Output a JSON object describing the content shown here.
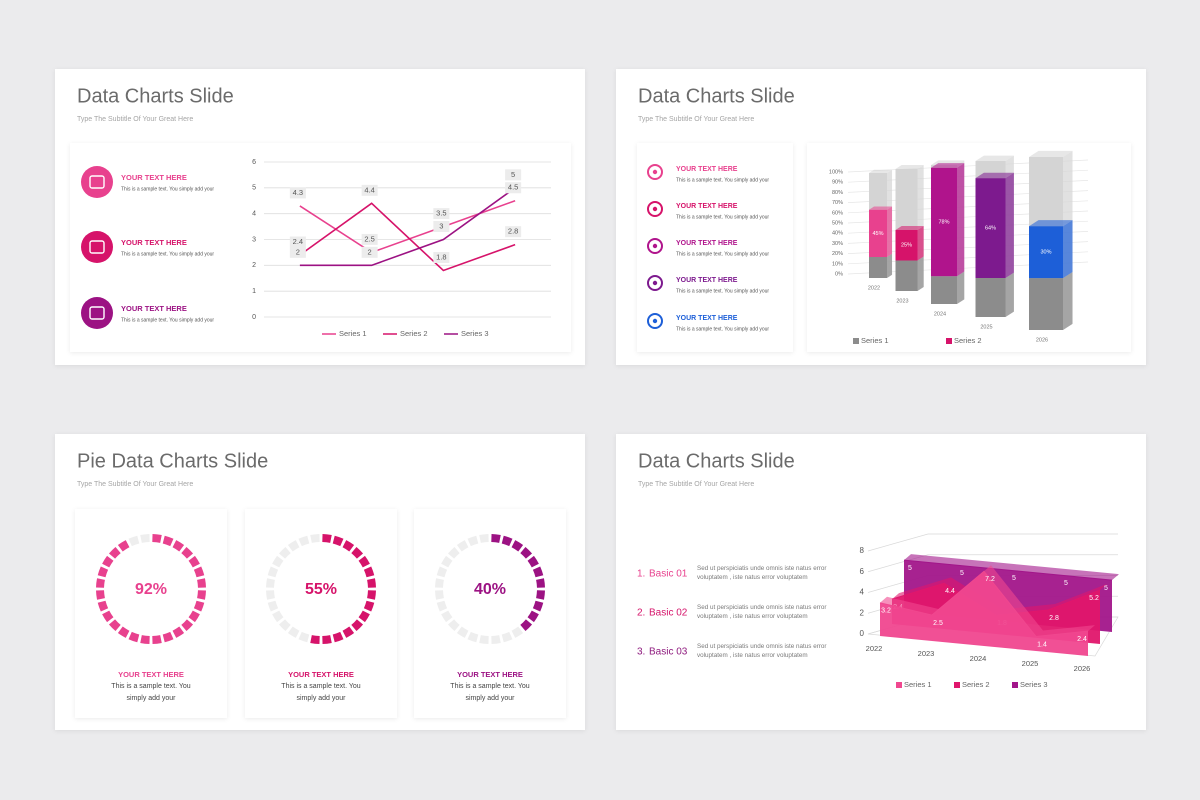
{
  "slides": [
    {
      "title": "Data Charts Slide",
      "subtitle": "Type The Subtitle Of Your Great Here",
      "items": [
        {
          "heading": "YOUR TEXT HERE",
          "text": "This is a sample text. You simply add your",
          "color": "#e8418e"
        },
        {
          "heading": "YOUR TEXT HERE",
          "text": "This is a sample text. You simply add your",
          "color": "#d6136a"
        },
        {
          "heading": "YOUR TEXT HERE",
          "text": "This is a sample text. You simply add your",
          "color": "#9c1283"
        }
      ]
    },
    {
      "title": "Data Charts Slide",
      "subtitle": "Type The Subtitle Of Your Great Here",
      "items": [
        {
          "heading": "YOUR TEXT HERE",
          "text": "This is a sample text. You simply add your",
          "color": "#e8418e"
        },
        {
          "heading": "YOUR TEXT HERE",
          "text": "This is a sample text. You simply add your",
          "color": "#d6136a"
        },
        {
          "heading": "YOUR TEXT HERE",
          "text": "This is a sample text. You simply add your",
          "color": "#b0148c"
        },
        {
          "heading": "YOUR TEXT HERE",
          "text": "This is a sample text. You simply add your",
          "color": "#7d1a8e"
        },
        {
          "heading": "YOUR TEXT HERE",
          "text": "This is a sample text. You simply add your",
          "color": "#1d5fd8"
        }
      ]
    },
    {
      "title": "Pie Data Charts Slide",
      "subtitle": "Type The Subtitle Of Your Great Here",
      "items": [
        {
          "heading": "YOUR TEXT HERE",
          "text": "This is a sample text. You simply add your",
          "color": "#e8418e"
        },
        {
          "heading": "YOUR TEXT HERE",
          "text": "This is a sample text. You simply add your",
          "color": "#d6136a"
        },
        {
          "heading": "YOUR TEXT HERE",
          "text": "This is a sample text. You simply add your",
          "color": "#9c1283"
        }
      ]
    },
    {
      "title": "Data Charts Slide",
      "subtitle": "Type The Subtitle Of Your Great Here",
      "items": [
        {
          "number": "1.",
          "label": "Basic 01",
          "text": "Sed ut perspiciatis unde omnis iste natus error voluptatem , iste natus error voluptatem",
          "color": "#e8418e"
        },
        {
          "number": "2.",
          "label": "Basic 02",
          "text": "Sed ut perspiciatis unde omnis iste natus error voluptatem , iste natus error voluptatem",
          "color": "#d6136a"
        },
        {
          "number": "3.",
          "label": "Basic 03",
          "text": "Sed ut perspiciatis unde omnis iste natus error voluptatem , iste natus error voluptatem",
          "color": "#8e1a7e"
        }
      ]
    }
  ],
  "chart_data": [
    {
      "type": "line",
      "categories": [
        null,
        null,
        null,
        null
      ],
      "ylim": [
        0,
        6
      ],
      "yticks": [
        0,
        1,
        2,
        3,
        4,
        5,
        6
      ],
      "grid": true,
      "series": [
        {
          "name": "Series 1",
          "color": "#e8418e",
          "values": [
            4.3,
            2.5,
            3.5,
            4.5
          ]
        },
        {
          "name": "Series 2",
          "color": "#d6136a",
          "values": [
            2.4,
            4.4,
            1.8,
            2.8
          ]
        },
        {
          "name": "Series 3",
          "color": "#9c1283",
          "values": [
            2,
            2,
            3,
            5
          ]
        }
      ]
    },
    {
      "type": "bar3d",
      "stacked": true,
      "categories": [
        "2022",
        "2023",
        "2024",
        "2025",
        "2026"
      ],
      "ylim": [
        0,
        100
      ],
      "yticks": [
        {
          "value": 0,
          "label": "0%"
        },
        {
          "value": 10,
          "label": "10%"
        },
        {
          "value": 20,
          "label": "20%"
        },
        {
          "value": 30,
          "label": "30%"
        },
        {
          "value": 40,
          "label": "40%"
        },
        {
          "value": 50,
          "label": "50%"
        },
        {
          "value": 60,
          "label": "60%"
        },
        {
          "value": 70,
          "label": "70%"
        },
        {
          "value": 80,
          "label": "80%"
        },
        {
          "value": 90,
          "label": "90%"
        },
        {
          "value": 100,
          "label": "100%"
        }
      ],
      "series": [
        {
          "name": "Series 1",
          "color": "#8c8c8c",
          "values": [
            20,
            25,
            20,
            25,
            30
          ]
        },
        {
          "name": "Series 2",
          "color": "#d6136a",
          "values": [
            45,
            25,
            78,
            64,
            30
          ],
          "value_labels": [
            "45%",
            "25%",
            "78%",
            "64%",
            "30%"
          ],
          "point_colors": [
            "#e8418e",
            "#d6136a",
            "#b0148c",
            "#7d1a8e",
            "#1d5fd8"
          ]
        }
      ]
    },
    {
      "type": "pie",
      "values": [
        92
      ],
      "value_labels": [
        "92%"
      ],
      "color": "#e8418e"
    },
    {
      "type": "pie",
      "values": [
        55
      ],
      "value_labels": [
        "55%"
      ],
      "color": "#d6136a"
    },
    {
      "type": "pie",
      "values": [
        40
      ],
      "value_labels": [
        "40%"
      ],
      "color": "#9c1283"
    },
    {
      "type": "area3d",
      "categories": [
        "2022",
        "2023",
        "2024",
        "2025",
        "2026"
      ],
      "ylim": [
        0,
        8
      ],
      "yticks": [
        0,
        2,
        4,
        6,
        8
      ],
      "series": [
        {
          "name": "Series 1",
          "color": "#f0478f",
          "values": [
            3.2,
            2.5,
            7.2,
            1.4,
            2.4
          ]
        },
        {
          "name": "Series 2",
          "color": "#e0166c",
          "values": [
            2.4,
            4.4,
            1.8,
            2.8,
            5.2
          ]
        },
        {
          "name": "Series 3",
          "color": "#a2168a",
          "values": [
            5,
            5,
            5,
            5,
            5
          ]
        }
      ]
    }
  ]
}
